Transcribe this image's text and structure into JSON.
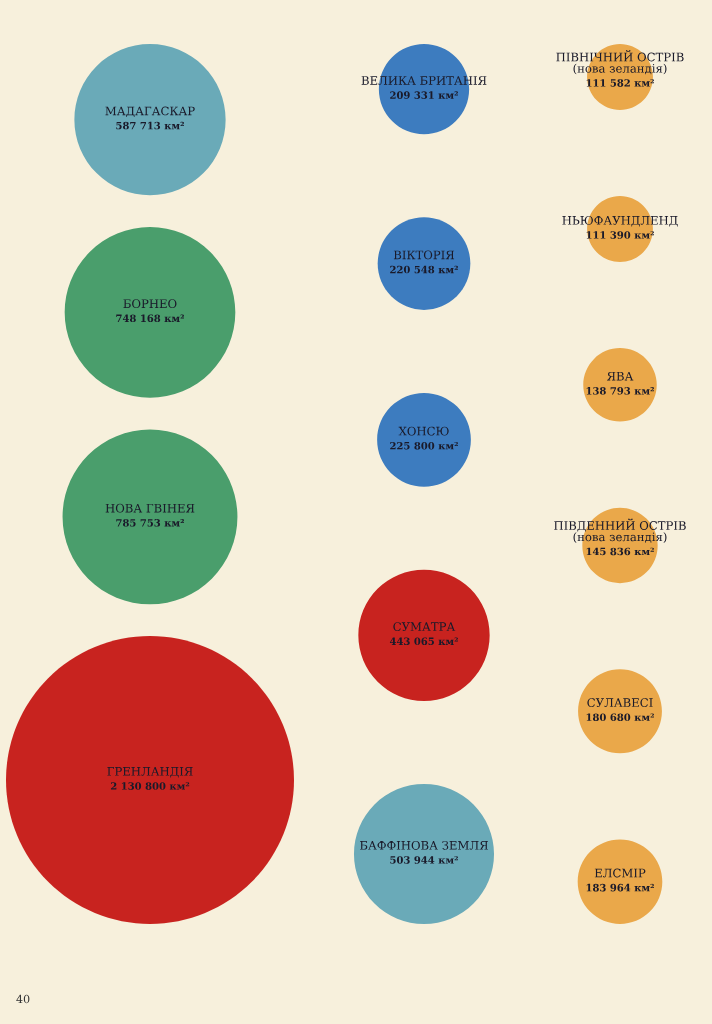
{
  "chart_data": {
    "type": "other",
    "categories": [
      "МАДАГАСКАР",
      "БОРНЕО",
      "НОВА ГВІНЕЯ",
      "ГРЕНЛАНДІЯ",
      "ВЕЛИКА БРИТАНІЯ",
      "ВІКТОРІЯ",
      "ХОНСЮ",
      "СУМАТРА",
      "БАФФІНОВА ЗЕМЛЯ",
      "ПІВНІЧНИЙ ОСТРІВ\n(нова зеландія)",
      "НЬЮФАУНДЛЕНД",
      "ЯВА",
      "ПІВДЕННИЙ ОСТРІВ\n(нова зеландія)",
      "СУЛАВЕСІ",
      "ЕЛСМІР"
    ],
    "values": [
      587713,
      748168,
      785753,
      2130800,
      209331,
      220548,
      225800,
      443065,
      503944,
      111582,
      111390,
      138793,
      145836,
      180680,
      183964
    ],
    "value_labels": [
      "587 713 км²",
      "748 168 км²",
      "785 753 км²",
      "2 130 800 км²",
      "209 331 км²",
      "220 548 км²",
      "225 800 км²",
      "443 065 км²",
      "503 944 км²",
      "111 582 км²",
      "111 390 км²",
      "138 793 км²",
      "145 836 км²",
      "180 680 км²",
      "183 964 км²"
    ],
    "colors": [
      "#6aaab8",
      "#4a9e6c",
      "#4a9e6c",
      "#c8231f",
      "#3d7cbf",
      "#3d7cbf",
      "#3d7cbf",
      "#c8231f",
      "#6aaab8",
      "#eaa84a",
      "#eaa84a",
      "#eaa84a",
      "#eaa84a",
      "#eaa84a",
      "#eaa84a"
    ],
    "annotations": [
      "40"
    ]
  }
}
